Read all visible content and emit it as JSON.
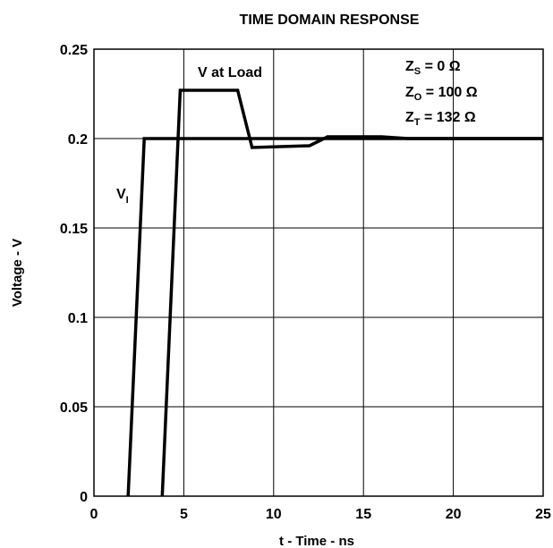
{
  "chart_data": {
    "type": "line",
    "title": "TIME DOMAIN RESPONSE",
    "xlabel": "t - Time - ns",
    "ylabel": "Voltage - V",
    "xlim": [
      0,
      25
    ],
    "ylim": [
      0,
      0.25
    ],
    "grid": true,
    "x_ticks": [
      "0",
      "5",
      "10",
      "15",
      "20",
      "25"
    ],
    "y_ticks": [
      "0",
      "0.05",
      "0.1",
      "0.15",
      "0.2",
      "0.25"
    ],
    "series": [
      {
        "name_main": "V",
        "name_sub": "I",
        "x": [
          1.9,
          2.8,
          25
        ],
        "y": [
          0,
          0.2,
          0.2
        ]
      },
      {
        "name": "V at Load",
        "x": [
          3.8,
          4.8,
          8.0,
          8.8,
          12.0,
          13.0,
          16.0,
          17.5,
          25
        ],
        "y": [
          0,
          0.227,
          0.227,
          0.195,
          0.196,
          0.201,
          0.201,
          0.2,
          0.2
        ]
      }
    ],
    "annotations": [
      {
        "main": "Z",
        "sub": "S",
        "rest": " = 0 Ω"
      },
      {
        "main": "Z",
        "sub": "O",
        "rest": " = 100 Ω"
      },
      {
        "main": "Z",
        "sub": "T",
        "rest": " = 132 Ω"
      }
    ]
  }
}
